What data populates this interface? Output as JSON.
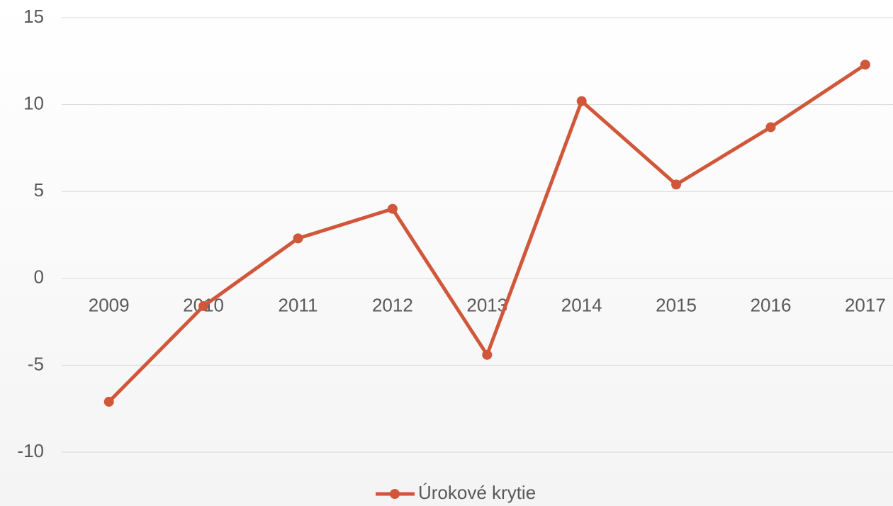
{
  "chart_data": {
    "type": "line",
    "categories": [
      "2009",
      "2010",
      "2011",
      "2012",
      "2013",
      "2014",
      "2015",
      "2016",
      "2017"
    ],
    "series": [
      {
        "name": "Úrokové krytie",
        "color": "#d0573a",
        "values": [
          -7.1,
          -1.6,
          2.3,
          4.0,
          -4.4,
          10.2,
          5.4,
          8.7,
          12.3
        ]
      }
    ],
    "ylim": [
      -10,
      15
    ],
    "yticks": [
      -10,
      -5,
      0,
      5,
      10,
      15
    ],
    "grid": true,
    "legend": "bottom"
  }
}
